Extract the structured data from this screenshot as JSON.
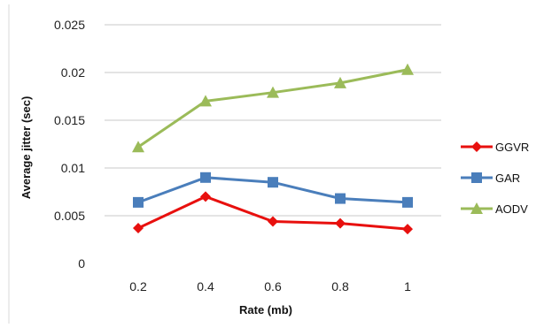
{
  "chart_data": {
    "type": "line",
    "xlabel": "Rate (mb)",
    "ylabel": "Average jitter (sec)",
    "x": [
      "0.2",
      "0.4",
      "0.6",
      "0.8",
      "1"
    ],
    "y_ticks": [
      "0",
      "0.005",
      "0.01",
      "0.015",
      "0.02",
      "0.025"
    ],
    "ylim": [
      0,
      0.025
    ],
    "grid": true,
    "legend_position": "right",
    "series": [
      {
        "name": "GGVR",
        "values": [
          0.0037,
          0.007,
          0.0044,
          0.0042,
          0.0036
        ],
        "color": "#e8100e",
        "marker": "diamond"
      },
      {
        "name": "GAR",
        "values": [
          0.0064,
          0.009,
          0.0085,
          0.0068,
          0.0064
        ],
        "color": "#4a7ebb",
        "marker": "square"
      },
      {
        "name": "AODV",
        "values": [
          0.0122,
          0.017,
          0.0179,
          0.0189,
          0.0203
        ],
        "color": "#9bbb59",
        "marker": "triangle"
      }
    ]
  }
}
